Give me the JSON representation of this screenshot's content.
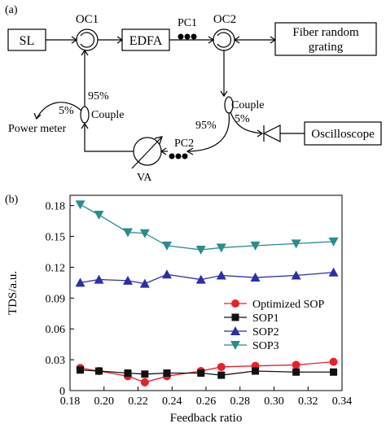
{
  "panel_a": {
    "label": "(a)",
    "sl": "SL",
    "oc1": "OC1",
    "edfa": "EDFA",
    "pc1": "PC1",
    "oc2": "OC2",
    "fiber_line1": "Fiber random",
    "fiber_line2": "grating",
    "pct95_left": "95%",
    "pct5_left": "5%",
    "couple_left": "Couple",
    "power_meter": "Power meter",
    "couple_right": "Couple",
    "pct5_right": "5%",
    "pct95_right": "95%",
    "oscilloscope": "Oscilloscope",
    "pc2": "PC2",
    "va": "VA"
  },
  "panel_b": {
    "label": "(b)"
  },
  "chart_data": {
    "type": "line",
    "xlabel": "Feedback ratio",
    "ylabel": "TDS/a.u.",
    "xlim": [
      0.18,
      0.34
    ],
    "ylim": [
      0,
      0.19
    ],
    "xticks": [
      "0.18",
      "0.20",
      "0.22",
      "0.24",
      "0.26",
      "0.28",
      "0.30",
      "0.32",
      "0.34"
    ],
    "yticks": [
      "0",
      "0.03",
      "0.06",
      "0.09",
      "0.12",
      "0.15",
      "0.18"
    ],
    "legend_position": "bottom-right",
    "series": [
      {
        "name": "Optimized SOP",
        "marker": "circle",
        "color": "#e8202a",
        "points": [
          [
            0.186,
            0.022
          ],
          [
            0.197,
            0.019
          ],
          [
            0.214,
            0.014
          ],
          [
            0.224,
            0.008
          ],
          [
            0.237,
            0.014
          ],
          [
            0.257,
            0.019
          ],
          [
            0.269,
            0.023
          ],
          [
            0.289,
            0.024
          ],
          [
            0.313,
            0.025
          ],
          [
            0.335,
            0.028
          ]
        ]
      },
      {
        "name": "SOP1",
        "marker": "square",
        "color": "#111111",
        "points": [
          [
            0.186,
            0.02
          ],
          [
            0.197,
            0.019
          ],
          [
            0.214,
            0.017
          ],
          [
            0.224,
            0.016
          ],
          [
            0.237,
            0.017
          ],
          [
            0.257,
            0.017
          ],
          [
            0.269,
            0.015
          ],
          [
            0.289,
            0.019
          ],
          [
            0.313,
            0.018
          ],
          [
            0.335,
            0.018
          ]
        ]
      },
      {
        "name": "SOP2",
        "marker": "triangle-up",
        "color": "#2b2fa8",
        "points": [
          [
            0.186,
            0.105
          ],
          [
            0.197,
            0.108
          ],
          [
            0.214,
            0.107
          ],
          [
            0.224,
            0.104
          ],
          [
            0.237,
            0.113
          ],
          [
            0.257,
            0.108
          ],
          [
            0.269,
            0.112
          ],
          [
            0.289,
            0.11
          ],
          [
            0.313,
            0.112
          ],
          [
            0.335,
            0.115
          ]
        ]
      },
      {
        "name": "SOP3",
        "marker": "triangle-down",
        "color": "#2a8c8c",
        "points": [
          [
            0.186,
            0.181
          ],
          [
            0.197,
            0.171
          ],
          [
            0.214,
            0.154
          ],
          [
            0.224,
            0.153
          ],
          [
            0.237,
            0.141
          ],
          [
            0.257,
            0.137
          ],
          [
            0.269,
            0.139
          ],
          [
            0.289,
            0.141
          ],
          [
            0.313,
            0.143
          ],
          [
            0.335,
            0.145
          ]
        ]
      }
    ]
  }
}
